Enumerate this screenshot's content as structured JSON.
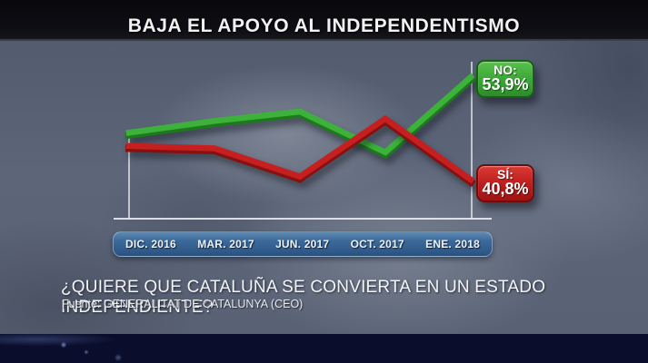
{
  "chart_data": {
    "type": "line",
    "title": "BAJA EL APOYO AL INDEPENDENTISMO",
    "categories": [
      "DIC. 2016",
      "MAR. 2017",
      "JUN. 2017",
      "OCT. 2017",
      "ENE. 2018"
    ],
    "series": [
      {
        "name": "NO",
        "color": "#3db23a",
        "edge_color": "#1d7a1c",
        "values": [
          46.8,
          48.3,
          49.5,
          44.3,
          53.9
        ]
      },
      {
        "name": "SÍ",
        "color": "#c51f1f",
        "edge_color": "#871010",
        "values": [
          45.1,
          44.8,
          41.2,
          48.6,
          40.8
        ]
      }
    ],
    "badges": {
      "no": {
        "label": "NO:",
        "value": "53,9%"
      },
      "si": {
        "label": "SÍ:",
        "value": "40,8%"
      }
    },
    "ylim": [
      38,
      57
    ],
    "grid": false,
    "legend": "end-of-line badges at right",
    "x_axis_style": "blue rounded bar below baseline"
  },
  "question": "¿QUIERE QUE CATALUÑA SE CONVIERTA EN UN ESTADO INDEPENDIENTE?",
  "source": "Fuente: GENERALITAT DE CATALUNYA (CEO)",
  "colors": {
    "no_green": "#3db23a",
    "si_red": "#c51f1f",
    "axis_bar_blue": "#3a6899",
    "title_bar_black": "#0b0b10",
    "background_steel": "#5a6375",
    "bottom_band_navy": "#0a0e2c"
  }
}
